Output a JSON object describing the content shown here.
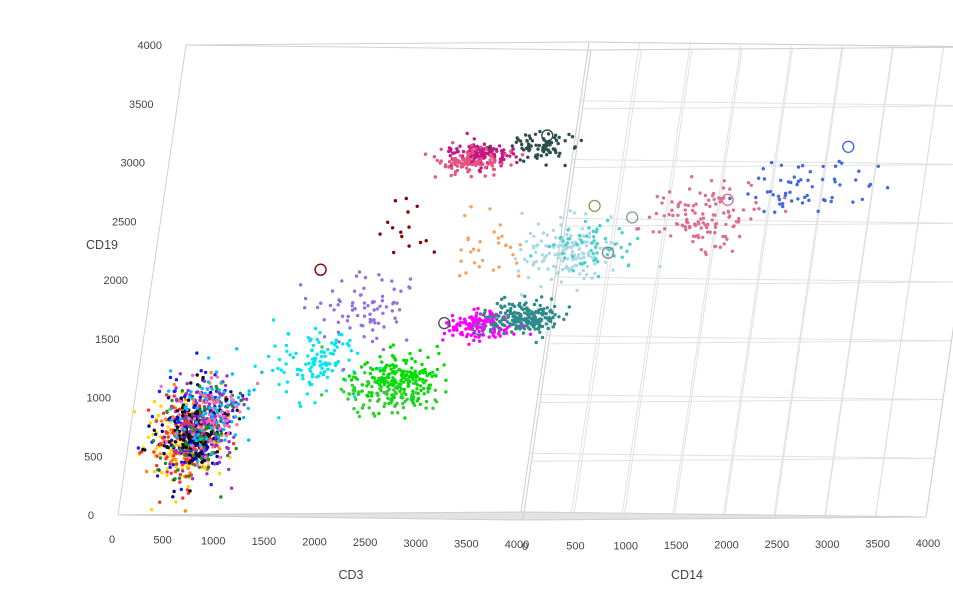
{
  "chart_data": {
    "type": "scatter3d",
    "title": "",
    "axes": {
      "x": {
        "label": "CD3",
        "range": [
          0,
          4000
        ],
        "ticks": [
          "0",
          "500",
          "1000",
          "1500",
          "2000",
          "2500",
          "3000",
          "3500",
          "4000"
        ]
      },
      "y": {
        "label": "CD14",
        "range": [
          0,
          4000
        ],
        "ticks": [
          "0",
          "500",
          "1000",
          "1500",
          "2000",
          "2500",
          "3000",
          "3500",
          "4000"
        ]
      },
      "z": {
        "label": "CD19",
        "range": [
          0,
          4000
        ],
        "ticks": [
          "0",
          "500",
          "1000",
          "1500",
          "2000",
          "2500",
          "3000",
          "3500",
          "4000"
        ]
      }
    },
    "grid": true,
    "legend": "none",
    "clusters": [
      {
        "color": "#ff8c00",
        "center": [
          500,
          120,
          700
        ],
        "spread": [
          320,
          120,
          380
        ],
        "count": 140
      },
      {
        "color": "#ffd700",
        "center": [
          420,
          100,
          600
        ],
        "spread": [
          320,
          110,
          380
        ],
        "count": 110
      },
      {
        "color": "#1a1aff",
        "center": [
          480,
          130,
          750
        ],
        "spread": [
          330,
          120,
          400
        ],
        "count": 140
      },
      {
        "color": "#0000a0",
        "center": [
          520,
          140,
          700
        ],
        "spread": [
          330,
          120,
          380
        ],
        "count": 110
      },
      {
        "color": "#9932cc",
        "center": [
          560,
          150,
          760
        ],
        "spread": [
          330,
          130,
          400
        ],
        "count": 130
      },
      {
        "color": "#ff3030",
        "center": [
          460,
          120,
          620
        ],
        "spread": [
          300,
          110,
          360
        ],
        "count": 90
      },
      {
        "color": "#228b22",
        "center": [
          540,
          140,
          720
        ],
        "spread": [
          320,
          120,
          380
        ],
        "count": 90
      },
      {
        "color": "#111111",
        "center": [
          500,
          130,
          680
        ],
        "spread": [
          320,
          120,
          380
        ],
        "count": 80
      },
      {
        "color": "#00bfff",
        "center": [
          620,
          160,
          900
        ],
        "spread": [
          330,
          140,
          420
        ],
        "count": 80
      },
      {
        "color": "#ff69b4",
        "center": [
          600,
          150,
          780
        ],
        "spread": [
          320,
          130,
          380
        ],
        "count": 60
      },
      {
        "color": "#00e5ee",
        "center": [
          1300,
          450,
          1300
        ],
        "spread": [
          380,
          250,
          280
        ],
        "count": 110
      },
      {
        "color": "#00dd00",
        "center": [
          1900,
          700,
          1180
        ],
        "spread": [
          330,
          260,
          200
        ],
        "count": 190
      },
      {
        "color": "#32cd32",
        "center": [
          1800,
          650,
          1050
        ],
        "spread": [
          380,
          280,
          220
        ],
        "count": 90
      },
      {
        "color": "#ff00ff",
        "center": [
          2250,
          1050,
          1620
        ],
        "spread": [
          260,
          220,
          130
        ],
        "count": 150
      },
      {
        "color": "#2e8b8b",
        "center": [
          2500,
          1250,
          1700
        ],
        "spread": [
          280,
          250,
          140
        ],
        "count": 200
      },
      {
        "color": "#9370db",
        "center": [
          1650,
          500,
          1750
        ],
        "spread": [
          380,
          300,
          320
        ],
        "count": 80
      },
      {
        "color": "#c71585",
        "center": [
          2050,
          1020,
          3080
        ],
        "spread": [
          240,
          200,
          110
        ],
        "count": 140
      },
      {
        "color": "#e75480",
        "center": [
          2000,
          980,
          3020
        ],
        "spread": [
          250,
          200,
          110
        ],
        "count": 90
      },
      {
        "color": "#2f4f4f",
        "center": [
          2550,
          1100,
          3150
        ],
        "spread": [
          250,
          210,
          130
        ],
        "count": 80
      },
      {
        "color": "#add8e6",
        "center": [
          2550,
          1500,
          2250
        ],
        "spread": [
          330,
          300,
          260
        ],
        "count": 140
      },
      {
        "color": "#48d1cc",
        "center": [
          2650,
          1600,
          2300
        ],
        "spread": [
          300,
          280,
          240
        ],
        "count": 60
      },
      {
        "color": "#db7093",
        "center": [
          3050,
          2350,
          2550
        ],
        "spread": [
          280,
          420,
          280
        ],
        "count": 120
      },
      {
        "color": "#4169e1",
        "center": [
          3400,
          3000,
          2800
        ],
        "spread": [
          300,
          520,
          260
        ],
        "count": 60
      },
      {
        "color": "#f4a460",
        "center": [
          2100,
          1200,
          2300
        ],
        "spread": [
          300,
          280,
          300
        ],
        "count": 30
      },
      {
        "color": "#8b0000",
        "center": [
          1800,
          600,
          2500
        ],
        "spread": [
          300,
          250,
          300
        ],
        "count": 15
      }
    ],
    "centroids": [
      {
        "color": "#8b0000",
        "x": 1350,
        "y": 300,
        "z": 2100
      },
      {
        "color": "#555555",
        "x": 2100,
        "y": 850,
        "z": 1650
      },
      {
        "color": "#2e8b8b",
        "x": 2300,
        "y": 1000,
        "z": 1600
      },
      {
        "color": "#888888",
        "x": 2720,
        "y": 1750,
        "z": 2250
      },
      {
        "color": "#999966",
        "x": 2720,
        "y": 1550,
        "z": 2650
      },
      {
        "color": "#8aa0a0",
        "x": 2780,
        "y": 1880,
        "z": 2550
      },
      {
        "color": "#2f4f4f",
        "x": 2550,
        "y": 1150,
        "z": 3250
      },
      {
        "color": "#db7093",
        "x": 3100,
        "y": 2480,
        "z": 2700
      },
      {
        "color": "#4169e1",
        "x": 3450,
        "y": 3250,
        "z": 3150
      }
    ]
  }
}
